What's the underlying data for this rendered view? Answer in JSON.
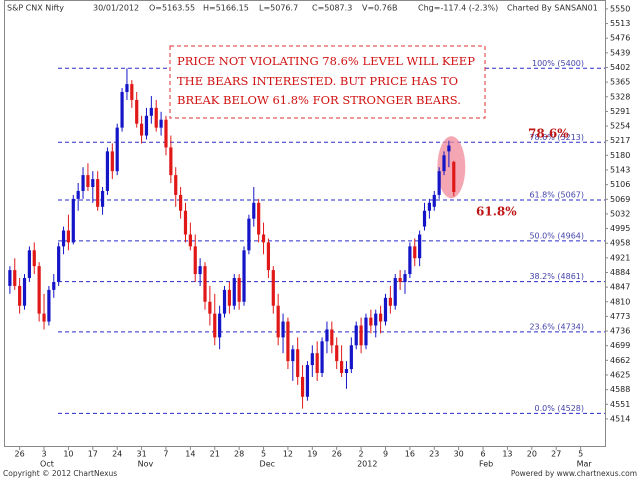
{
  "chart_data": {
    "type": "candlestick",
    "title": "S&P CNX Nifty",
    "header": [
      "30/01/2012",
      "O=5163.55",
      "H=5166.15",
      "L=5076.7",
      "C=5087.3",
      "V=0.76B",
      "Chg=-117.4 (-2.3%)",
      "Charted By SANSAN01"
    ],
    "up_color": "#1515c8",
    "down_color": "#e01818",
    "open": [
      4850,
      4890,
      4850,
      4800,
      4870,
      4940,
      4900,
      4780,
      4760,
      4840,
      4860,
      4950,
      4990,
      4960,
      5070,
      5090,
      5130,
      5100,
      5120,
      5050,
      5090,
      5190,
      5140,
      5250,
      5340,
      5360,
      5320,
      5260,
      5230,
      5280,
      5300,
      5250,
      5270,
      5200,
      5130,
      5080,
      5040,
      4980,
      4950,
      4880,
      4900,
      4810,
      4780,
      4720,
      4780,
      4840,
      4800,
      4870,
      4810,
      4940,
      5020,
      5060,
      4980,
      4960,
      4890,
      4800,
      4720,
      4760,
      4660,
      4690,
      4620,
      4570,
      4650,
      4680,
      4630,
      4710,
      4740,
      4700,
      4660,
      4630,
      4640,
      4700,
      4750,
      4700,
      4770,
      4750,
      4780,
      4760,
      4820,
      4800,
      4870,
      4860,
      4880,
      4950,
      4920,
      5000,
      5040,
      5050,
      5080,
      5140,
      5190,
      5163.55
    ],
    "high": [
      4900,
      4920,
      4870,
      4880,
      4950,
      4960,
      4910,
      4830,
      4850,
      4880,
      4960,
      5000,
      5030,
      5080,
      5110,
      5150,
      5160,
      5140,
      5140,
      5100,
      5200,
      5210,
      5260,
      5350,
      5400,
      5370,
      5340,
      5280,
      5300,
      5330,
      5320,
      5290,
      5280,
      5230,
      5150,
      5100,
      5060,
      5010,
      4980,
      4920,
      4910,
      4850,
      4830,
      4800,
      4850,
      4860,
      4880,
      4880,
      4950,
      5030,
      5100,
      5070,
      5010,
      4970,
      4900,
      4830,
      4780,
      4770,
      4700,
      4720,
      4650,
      4660,
      4700,
      4710,
      4720,
      4760,
      4760,
      4720,
      4700,
      4660,
      4720,
      4760,
      4770,
      4780,
      4790,
      4790,
      4800,
      4830,
      4850,
      4880,
      4890,
      4890,
      4960,
      4970,
      4990,
      5060,
      5070,
      5090,
      5150,
      5190,
      5217,
      5166.15
    ],
    "low": [
      4830,
      4840,
      4780,
      4790,
      4860,
      4880,
      4760,
      4740,
      4750,
      4820,
      4850,
      4930,
      4940,
      4955,
      5040,
      5070,
      5090,
      5060,
      5040,
      5030,
      5080,
      5120,
      5130,
      5240,
      5320,
      5300,
      5250,
      5210,
      5220,
      5260,
      5240,
      5230,
      5180,
      5110,
      5050,
      5020,
      4960,
      4940,
      4860,
      4850,
      4790,
      4750,
      4700,
      4690,
      4770,
      4780,
      4790,
      4790,
      4800,
      4930,
      5000,
      4960,
      4930,
      4870,
      4780,
      4700,
      4680,
      4640,
      4610,
      4600,
      4540,
      4560,
      4620,
      4610,
      4620,
      4680,
      4680,
      4640,
      4620,
      4590,
      4630,
      4690,
      4680,
      4690,
      4730,
      4720,
      4730,
      4750,
      4780,
      4790,
      4840,
      4830,
      4870,
      4900,
      4900,
      4990,
      5020,
      5040,
      5070,
      5130,
      5150,
      5076.7
    ],
    "close": [
      4890,
      4850,
      4800,
      4870,
      4940,
      4900,
      4780,
      4760,
      4840,
      4860,
      4950,
      4990,
      4960,
      5070,
      5090,
      5130,
      5100,
      5120,
      5050,
      5090,
      5190,
      5140,
      5250,
      5340,
      5360,
      5320,
      5260,
      5230,
      5280,
      5300,
      5250,
      5270,
      5200,
      5130,
      5080,
      5040,
      4980,
      4950,
      4880,
      4900,
      4810,
      4780,
      4720,
      4780,
      4840,
      4800,
      4870,
      4810,
      4940,
      5020,
      5060,
      4980,
      4960,
      4890,
      4800,
      4720,
      4760,
      4660,
      4690,
      4620,
      4570,
      4650,
      4680,
      4630,
      4710,
      4740,
      4700,
      4660,
      4630,
      4640,
      4700,
      4750,
      4700,
      4770,
      4750,
      4780,
      4760,
      4820,
      4800,
      4870,
      4860,
      4880,
      4950,
      4920,
      4980,
      5040,
      5060,
      5080,
      5140,
      5180,
      5204.7,
      5087.3
    ],
    "xlim": [
      -1,
      122
    ],
    "ylim": [
      4443,
      5570
    ],
    "xticks": [
      {
        "value": 2,
        "label": "26"
      },
      {
        "value": 7,
        "label": "3"
      },
      {
        "value": 12,
        "label": "10"
      },
      {
        "value": 17,
        "label": "17"
      },
      {
        "value": 22,
        "label": "24"
      },
      {
        "value": 27,
        "label": "31"
      },
      {
        "value": 32,
        "label": "7"
      },
      {
        "value": 37,
        "label": "14"
      },
      {
        "value": 42,
        "label": "21"
      },
      {
        "value": 47,
        "label": "28"
      },
      {
        "value": 52,
        "label": "5"
      },
      {
        "value": 57,
        "label": "12"
      },
      {
        "value": 62,
        "label": "19"
      },
      {
        "value": 67,
        "label": "26"
      },
      {
        "value": 72,
        "label": "2"
      },
      {
        "value": 77,
        "label": "9"
      },
      {
        "value": 82,
        "label": "16"
      },
      {
        "value": 87,
        "label": "23"
      },
      {
        "value": 92,
        "label": "30"
      },
      {
        "value": 97,
        "label": "6"
      },
      {
        "value": 102,
        "label": "13"
      },
      {
        "value": 107,
        "label": "20"
      },
      {
        "value": 112,
        "label": "27"
      },
      {
        "value": 117,
        "label": "5"
      }
    ],
    "month_labels": [
      {
        "value": 7,
        "label": "Oct"
      },
      {
        "value": 27,
        "label": "Nov"
      },
      {
        "value": 52,
        "label": "Dec"
      },
      {
        "value": 72,
        "label": "2012"
      },
      {
        "value": 97,
        "label": "Feb"
      },
      {
        "value": 117,
        "label": "Mar"
      }
    ],
    "yticks": [
      4514,
      4551,
      4588,
      4625,
      4662,
      4699,
      4736,
      4773,
      4810,
      4847,
      4884,
      4921,
      4958,
      4995,
      5032,
      5069,
      5106,
      5143,
      5180,
      5217,
      5254,
      5291,
      5328,
      5365,
      5402,
      5439,
      5476,
      5513,
      5550
    ],
    "levels": [
      {
        "value": 5400,
        "label": "100% (5400)"
      },
      {
        "value": 5213,
        "label": "78.6% (5213)"
      },
      {
        "value": 5067,
        "label": "61.8% (5067)"
      },
      {
        "value": 4964,
        "label": "50.0% (4964)"
      },
      {
        "value": 4861,
        "label": "38.2% (4861)"
      },
      {
        "value": 4734,
        "label": "23.6% (4734)"
      },
      {
        "value": 4528,
        "label": "0.0% (4528)"
      }
    ],
    "annotation": [
      "PRICE NOT VIOLATING 78.6% LEVEL WILL KEEP",
      "THE BEARS INTERESTED. BUT PRICE HAS TO",
      "BREAK BELOW 61.8% FOR STRONGER BEARS."
    ],
    "callouts": [
      "78.6%",
      "61.8%"
    ],
    "footer_left": "Copyright © 2012 ChartNexus",
    "footer_right": "Powered by www.chartnexus.com"
  }
}
